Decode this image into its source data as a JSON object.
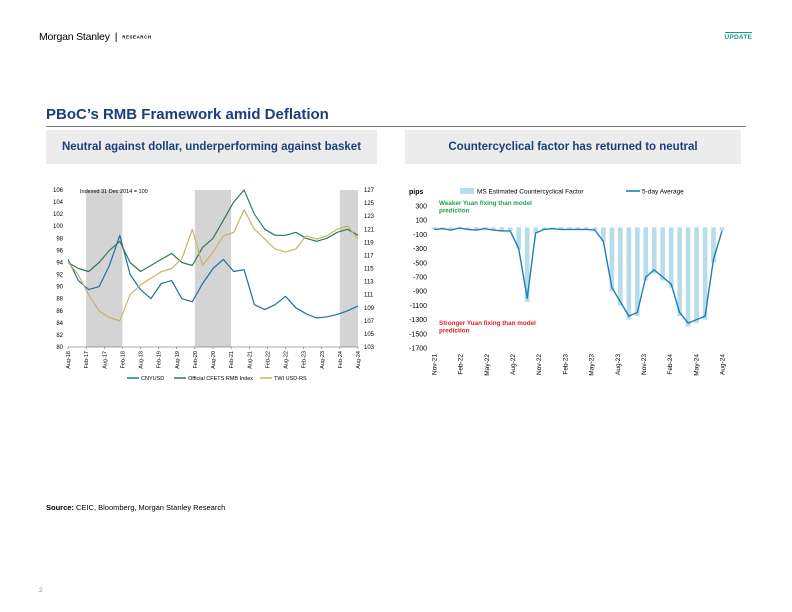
{
  "header": {
    "brand": "Morgan Stanley",
    "separator": "|",
    "research_label": "RESEARCH",
    "update_badge": "UPDATE"
  },
  "page_title": "PBoC’s RMB Framework amid Deflation",
  "left_panel_title": "Neutral against dollar, underperforming against basket",
  "right_panel_title": "Countercyclical factor has returned to neutral",
  "source": {
    "label": "Source:",
    "text": " CEIC, Bloomberg, Morgan Stanley Research"
  },
  "page_number": "2",
  "colors": {
    "navy": "#1a3f7a",
    "cnyusd": "#1f6fa8",
    "cfets": "#2f7a55",
    "twi": "#c9b16a",
    "shade": "#d4d4d4",
    "factor_bar": "#b7dcea",
    "avg_line": "#1d7fb5",
    "weaker_note": "#20a050",
    "stronger_note": "#dd2222"
  },
  "chart_data": [
    {
      "type": "line",
      "annotation": "Indexed 31 Dec 2014 = 100",
      "y_left": {
        "ylim": [
          80,
          106
        ],
        "ticks": [
          "80",
          "82",
          "84",
          "86",
          "88",
          "90",
          "92",
          "94",
          "96",
          "98",
          "100",
          "102",
          "104",
          "106"
        ]
      },
      "y_right": {
        "ylim": [
          103,
          127
        ],
        "ticks": [
          "103",
          "105",
          "107",
          "109",
          "111",
          "113",
          "115",
          "117",
          "119",
          "121",
          "123",
          "125",
          "127"
        ]
      },
      "x_ticks": [
        "Aug-16",
        "Feb-17",
        "Aug-17",
        "Feb-18",
        "Aug-18",
        "Feb-19",
        "Aug-19",
        "Feb-20",
        "Aug-20",
        "Feb-21",
        "Aug-21",
        "Feb-22",
        "Aug-22",
        "Feb-23",
        "Aug-23",
        "Feb-24",
        "Aug-24"
      ],
      "shaded_periods": [
        [
          "Feb-17",
          "Feb-18"
        ],
        [
          "Feb-20",
          "Feb-21"
        ],
        [
          "Feb-24",
          "Aug-24"
        ]
      ],
      "legend": [
        "CNYUSD",
        "Official CFETS RMB Index",
        "TWI USD-RS"
      ],
      "series": [
        {
          "name": "CNYUSD",
          "axis": "left",
          "values": [
            94.5,
            91.0,
            89.5,
            90.0,
            93.5,
            98.5,
            92.0,
            89.5,
            88.0,
            90.5,
            91.0,
            88.0,
            87.5,
            90.5,
            93.0,
            94.5,
            92.5,
            92.8,
            87.0,
            86.2,
            87.0,
            88.4,
            86.5,
            85.5,
            84.8,
            85.0,
            85.4,
            86.0,
            86.8
          ]
        },
        {
          "name": "Official CFETS RMB Index",
          "axis": "left",
          "values": [
            94.0,
            93.0,
            92.5,
            94.0,
            96.0,
            97.5,
            94.0,
            92.5,
            93.5,
            94.5,
            95.5,
            94.0,
            93.5,
            96.5,
            98.0,
            101.0,
            104.0,
            106.0,
            102.0,
            99.5,
            98.5,
            98.5,
            99.0,
            98.0,
            97.5,
            98.0,
            99.0,
            99.5,
            98.5
          ]
        },
        {
          "name": "TWI USD-RS",
          "axis": "right",
          "values": [
            116.0,
            114.0,
            111.0,
            108.5,
            107.5,
            107.0,
            111.0,
            112.5,
            113.5,
            114.5,
            115.0,
            116.5,
            121.0,
            115.5,
            117.5,
            120.0,
            120.5,
            124.0,
            121.0,
            119.5,
            118.0,
            117.5,
            118.0,
            120.0,
            119.5,
            120.0,
            121.0,
            121.5,
            119.5
          ]
        }
      ]
    },
    {
      "type": "bar",
      "ylabel": "pips",
      "ylim": [
        -1700,
        300
      ],
      "y_ticks": [
        "300",
        "100",
        "-100",
        "-300",
        "-500",
        "-700",
        "-900",
        "-1100",
        "-1300",
        "-1500",
        "-1700"
      ],
      "x_ticks": [
        "Nov-21",
        "Feb-22",
        "May-22",
        "Aug-22",
        "Nov-22",
        "Feb-23",
        "May-23",
        "Aug-23",
        "Nov-23",
        "Feb-24",
        "May-24",
        "Aug-24"
      ],
      "legend": [
        "MS Estimated Countercyclical Factor",
        "5-day Average"
      ],
      "annotations": {
        "weaker": "Weaker Yuan fixing than model prediction",
        "stronger": "Stronger Yuan fixing than model prediction"
      },
      "categories": [
        "Nov-21",
        "Dec-21",
        "Jan-22",
        "Feb-22",
        "Mar-22",
        "Apr-22",
        "May-22",
        "Jun-22",
        "Jul-22",
        "Aug-22",
        "Sep-22",
        "Oct-22",
        "Nov-22",
        "Dec-22",
        "Jan-23",
        "Feb-23",
        "Mar-23",
        "Apr-23",
        "May-23",
        "Jun-23",
        "Jul-23",
        "Aug-23",
        "Sep-23",
        "Oct-23",
        "Nov-23",
        "Dec-23",
        "Jan-24",
        "Feb-24",
        "Mar-24",
        "Apr-24",
        "May-24",
        "Jun-24",
        "Jul-24",
        "Aug-24",
        "Sep-24"
      ],
      "series": [
        {
          "name": "MS Estimated Countercyclical Factor",
          "values": [
            -30,
            -20,
            -40,
            -10,
            -30,
            -40,
            -20,
            -40,
            -50,
            -50,
            -300,
            -1050,
            -80,
            -30,
            -20,
            -30,
            -30,
            -30,
            -30,
            -40,
            -200,
            -900,
            -1100,
            -1300,
            -1250,
            -750,
            -650,
            -750,
            -850,
            -1250,
            -1400,
            -1350,
            -1300,
            -500,
            -50
          ]
        },
        {
          "name": "5-day Average",
          "values": [
            -30,
            -20,
            -40,
            -10,
            -30,
            -40,
            -20,
            -40,
            -50,
            -50,
            -300,
            -1000,
            -80,
            -30,
            -20,
            -30,
            -30,
            -30,
            -30,
            -40,
            -200,
            -850,
            -1050,
            -1250,
            -1200,
            -700,
            -600,
            -700,
            -800,
            -1200,
            -1350,
            -1300,
            -1250,
            -450,
            -50
          ]
        }
      ]
    }
  ]
}
